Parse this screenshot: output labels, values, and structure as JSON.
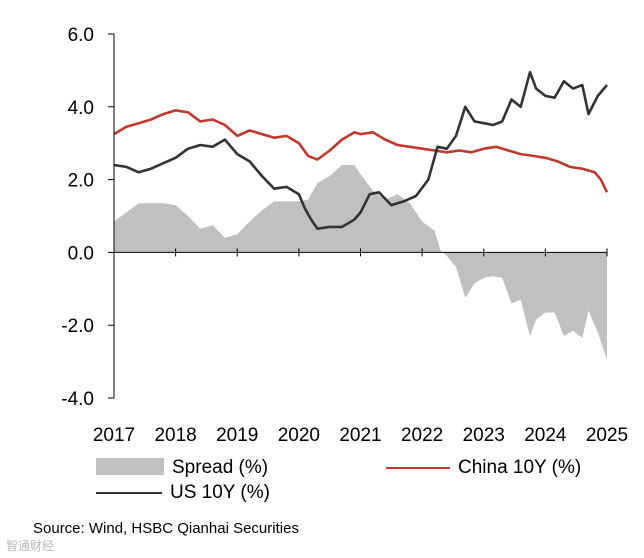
{
  "chart_data": {
    "type": "line",
    "title": "",
    "xlabel": "",
    "ylabel": "",
    "xlim": [
      2017,
      2025
    ],
    "ylim": [
      -4.0,
      6.0
    ],
    "y_ticks": [
      6.0,
      4.0,
      2.0,
      0.0,
      -2.0,
      -4.0
    ],
    "y_tick_labels": [
      "6.0",
      "4.0",
      "2.0",
      "0.0",
      "-2.0",
      "-4.0"
    ],
    "x_ticks": [
      2017,
      2018,
      2019,
      2020,
      2021,
      2022,
      2023,
      2024,
      2025
    ],
    "x_tick_labels": [
      "2017",
      "2018",
      "2019",
      "2020",
      "2021",
      "2022",
      "2023",
      "2024",
      "2025"
    ],
    "grid": false,
    "legend": [
      {
        "label": "Spread (%)",
        "kind": "area",
        "color": "#c0c0c0"
      },
      {
        "label": "China 10Y (%)",
        "kind": "line",
        "color": "#c0392b"
      },
      {
        "label": "US 10Y (%)",
        "kind": "line",
        "color": "#333333"
      }
    ],
    "series": [
      {
        "name": "China 10Y (%)",
        "color": "#c0392b",
        "x": [
          2017.0,
          2017.2,
          2017.4,
          2017.6,
          2017.8,
          2018.0,
          2018.2,
          2018.4,
          2018.6,
          2018.8,
          2019.0,
          2019.2,
          2019.4,
          2019.6,
          2019.8,
          2020.0,
          2020.15,
          2020.3,
          2020.5,
          2020.7,
          2020.9,
          2021.0,
          2021.2,
          2021.4,
          2021.6,
          2021.8,
          2022.0,
          2022.2,
          2022.4,
          2022.6,
          2022.8,
          2023.0,
          2023.2,
          2023.4,
          2023.6,
          2023.8,
          2024.0,
          2024.2,
          2024.4,
          2024.6,
          2024.8,
          2024.9,
          2025.0
        ],
        "values": [
          3.25,
          3.45,
          3.55,
          3.65,
          3.8,
          3.9,
          3.85,
          3.6,
          3.65,
          3.5,
          3.2,
          3.35,
          3.25,
          3.15,
          3.2,
          3.0,
          2.65,
          2.55,
          2.8,
          3.1,
          3.3,
          3.25,
          3.3,
          3.1,
          2.95,
          2.9,
          2.85,
          2.8,
          2.75,
          2.8,
          2.75,
          2.85,
          2.9,
          2.8,
          2.7,
          2.65,
          2.6,
          2.5,
          2.35,
          2.3,
          2.2,
          2.0,
          1.65
        ]
      },
      {
        "name": "US 10Y (%)",
        "color": "#333333",
        "x": [
          2017.0,
          2017.2,
          2017.4,
          2017.6,
          2017.8,
          2018.0,
          2018.2,
          2018.4,
          2018.6,
          2018.8,
          2019.0,
          2019.2,
          2019.4,
          2019.6,
          2019.8,
          2020.0,
          2020.1,
          2020.2,
          2020.3,
          2020.5,
          2020.7,
          2020.9,
          2021.0,
          2021.15,
          2021.3,
          2021.5,
          2021.7,
          2021.9,
          2022.1,
          2022.25,
          2022.4,
          2022.55,
          2022.7,
          2022.85,
          2023.0,
          2023.15,
          2023.3,
          2023.45,
          2023.6,
          2023.75,
          2023.85,
          2024.0,
          2024.15,
          2024.3,
          2024.45,
          2024.6,
          2024.7,
          2024.85,
          2025.0
        ],
        "values": [
          2.4,
          2.35,
          2.2,
          2.3,
          2.45,
          2.6,
          2.85,
          2.95,
          2.9,
          3.1,
          2.7,
          2.5,
          2.1,
          1.75,
          1.8,
          1.6,
          1.2,
          0.9,
          0.65,
          0.7,
          0.7,
          0.9,
          1.1,
          1.6,
          1.65,
          1.3,
          1.4,
          1.55,
          2.0,
          2.9,
          2.85,
          3.2,
          4.0,
          3.6,
          3.55,
          3.5,
          3.6,
          4.2,
          4.0,
          4.95,
          4.5,
          4.3,
          4.25,
          4.7,
          4.5,
          4.6,
          3.8,
          4.3,
          4.6
        ]
      },
      {
        "name": "Spread (%)",
        "color": "#c0c0c0",
        "x": [
          2017.0,
          2017.2,
          2017.4,
          2017.6,
          2017.8,
          2018.0,
          2018.2,
          2018.4,
          2018.6,
          2018.8,
          2019.0,
          2019.2,
          2019.4,
          2019.6,
          2019.8,
          2020.0,
          2020.15,
          2020.3,
          2020.5,
          2020.7,
          2020.9,
          2021.0,
          2021.2,
          2021.4,
          2021.6,
          2021.8,
          2022.0,
          2022.2,
          2022.3,
          2022.4,
          2022.55,
          2022.7,
          2022.85,
          2023.0,
          2023.15,
          2023.3,
          2023.45,
          2023.6,
          2023.75,
          2023.85,
          2024.0,
          2024.15,
          2024.3,
          2024.45,
          2024.6,
          2024.7,
          2024.85,
          2025.0
        ],
        "values": [
          0.85,
          1.1,
          1.35,
          1.35,
          1.35,
          1.3,
          1.0,
          0.65,
          0.75,
          0.4,
          0.5,
          0.85,
          1.15,
          1.4,
          1.4,
          1.4,
          1.45,
          1.9,
          2.1,
          2.4,
          2.4,
          2.15,
          1.7,
          1.45,
          1.6,
          1.35,
          0.85,
          0.6,
          0.05,
          -0.1,
          -0.4,
          -1.25,
          -0.85,
          -0.7,
          -0.65,
          -0.7,
          -1.4,
          -1.3,
          -2.3,
          -1.85,
          -1.65,
          -1.65,
          -2.3,
          -2.15,
          -2.35,
          -1.6,
          -2.2,
          -2.95
        ]
      }
    ]
  },
  "footer": {
    "source": "Source: Wind, HSBC Qianhai Securities",
    "watermark": "智通财经"
  }
}
